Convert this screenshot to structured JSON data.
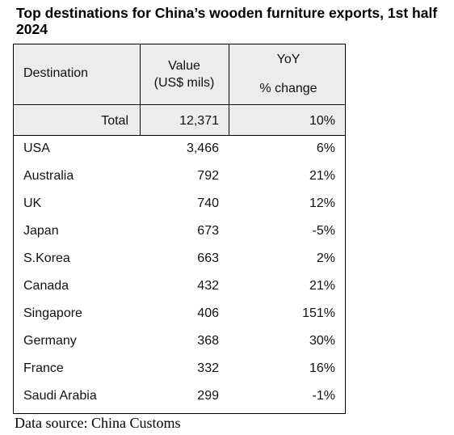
{
  "chart_data": {
    "type": "table",
    "title": "Top destinations for China’s wooden furniture exports, 1st half 2024",
    "columns": {
      "destination": "Destination",
      "value_line1": "Value",
      "value_line2": "(US$ mils)",
      "yoy_line1": "YoY",
      "yoy_line2": "% change"
    },
    "total": {
      "label": "Total",
      "value": "12,371",
      "yoy": "10%"
    },
    "rows": [
      {
        "destination": "USA",
        "value": "3,466",
        "yoy": "6%"
      },
      {
        "destination": "Australia",
        "value": "792",
        "yoy": "21%"
      },
      {
        "destination": "UK",
        "value": "740",
        "yoy": "12%"
      },
      {
        "destination": "Japan",
        "value": "673",
        "yoy": "-5%"
      },
      {
        "destination": "S.Korea",
        "value": "663",
        "yoy": "2%"
      },
      {
        "destination": "Canada",
        "value": "432",
        "yoy": "21%"
      },
      {
        "destination": "Singapore",
        "value": "406",
        "yoy": "151%"
      },
      {
        "destination": "Germany",
        "value": "368",
        "yoy": "30%"
      },
      {
        "destination": "France",
        "value": "332",
        "yoy": "16%"
      },
      {
        "destination": "Saudi Arabia",
        "value": "299",
        "yoy": "-1%"
      }
    ],
    "source": "Data source: China Customs"
  }
}
